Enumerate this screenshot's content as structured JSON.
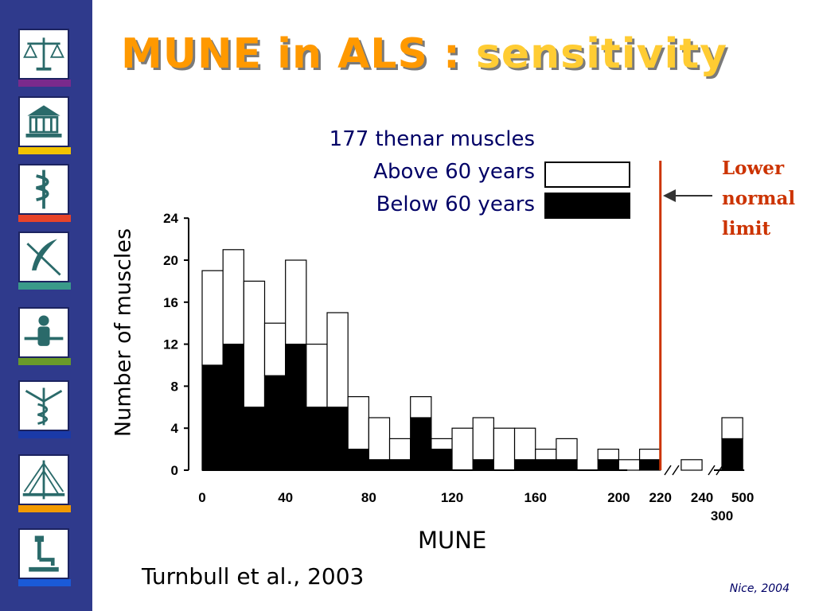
{
  "slide": {
    "title_part1": "MUNE in ALS : ",
    "title_part2": "sensitivity",
    "citation": "Turnbull et al., 2003",
    "footer": "Nice, 2004",
    "annotation": [
      "Lower",
      "normal",
      "limit"
    ],
    "sidebar_icons": [
      "scales-of-justice-icon",
      "greek-temple-icon",
      "caduceus-icon",
      "quill-arrow-icon",
      "human-figure-icon",
      "winged-caduceus-icon",
      "bridge-icon",
      "microscope-icon"
    ],
    "colors": {
      "sidebar": "#2f3a8c",
      "title": "#ff9900",
      "legend_text": "#000066",
      "limit_line": "#cc3300",
      "stripe_colors": [
        "#7a2a8c",
        "#f2c300",
        "#e8442a",
        "#3a9a8a",
        "#6a9a2a",
        "#1a3aa8",
        "#f29a00",
        "#1a5ad8"
      ]
    }
  },
  "chart_data": {
    "type": "bar",
    "stacked": true,
    "legend_header": "177 thenar muscles",
    "xlabel": "MUNE",
    "ylabel": "Number of muscles",
    "ylim": [
      0,
      24
    ],
    "yticks": [
      "0",
      "4",
      "8",
      "12",
      "16",
      "20",
      "24"
    ],
    "xticks": [
      "0",
      "40",
      "80",
      "120",
      "160",
      "200",
      "220",
      "240",
      "500"
    ],
    "xtick_extra": "300",
    "bin_width": 10,
    "bin_starts": [
      0,
      10,
      20,
      30,
      40,
      50,
      60,
      70,
      80,
      90,
      100,
      110,
      120,
      130,
      140,
      150,
      160,
      170,
      180,
      190,
      200,
      210,
      220,
      230,
      240,
      300
    ],
    "series": [
      {
        "name": "Below 60 years",
        "fill": "#000000",
        "values": [
          10,
          12,
          6,
          9,
          12,
          6,
          6,
          2,
          1,
          1,
          5,
          2,
          0,
          1,
          0,
          1,
          1,
          1,
          0,
          1,
          0,
          1,
          0,
          0,
          0,
          3
        ]
      },
      {
        "name": "Above 60 years",
        "fill": "#ffffff",
        "values": [
          9,
          9,
          12,
          5,
          8,
          6,
          9,
          5,
          4,
          2,
          2,
          1,
          4,
          4,
          4,
          3,
          1,
          2,
          0,
          1,
          1,
          1,
          0,
          1,
          0,
          2
        ]
      }
    ],
    "reference_line": {
      "x": 220,
      "label": "Lower normal limit"
    }
  }
}
